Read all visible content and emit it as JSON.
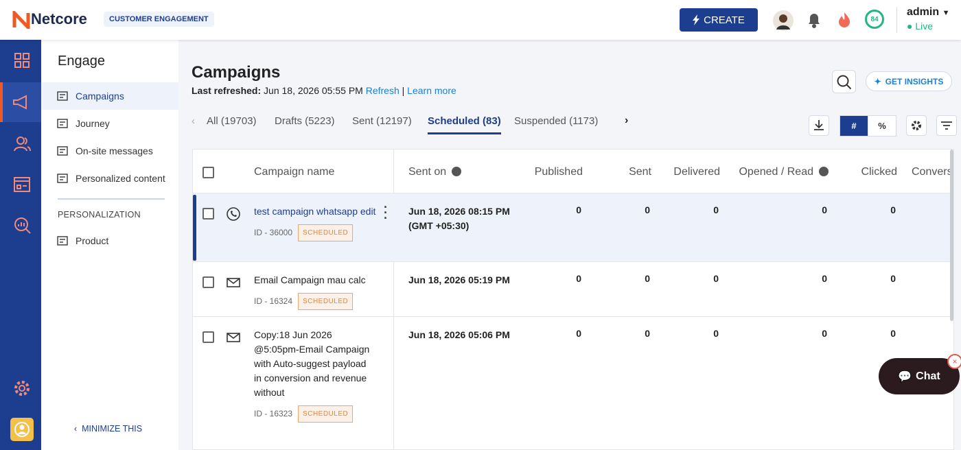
{
  "header": {
    "logo": "Netcore",
    "badge": "CUSTOMER ENGAGEMENT",
    "create": "CREATE",
    "score": "84",
    "user": "admin",
    "status": "Live"
  },
  "sidebar": {
    "title": "Engage",
    "items": [
      "Campaigns",
      "Journey",
      "On-site messages",
      "Personalized content"
    ],
    "section": "PERSONALIZATION",
    "section_items": [
      "Product"
    ],
    "minimize": "MINIMIZE THIS"
  },
  "main": {
    "title": "Campaigns",
    "refreshed_label": "Last refreshed:",
    "refreshed_time": "Jun 18, 2026 05:55 PM",
    "refresh": "Refresh",
    "separator": "|",
    "learn_more": "Learn more",
    "insights": "GET INSIGHTS",
    "tabs": [
      "All (19703)",
      "Drafts (5223)",
      "Sent (12197)",
      "Scheduled (83)",
      "Suspended (1173)"
    ],
    "toggles": [
      "#",
      "%"
    ]
  },
  "table": {
    "columns": [
      "Campaign name",
      "Sent on",
      "Published",
      "Sent",
      "Delivered",
      "Opened / Read",
      "Clicked",
      "Conversions"
    ],
    "rows": [
      {
        "name": "test campaign whatsapp edit",
        "id": "ID - 36000",
        "status": "SCHEDULED",
        "sent_on": "Jun 18, 2026 08:15 PM (GMT +05:30)",
        "values": [
          0,
          0,
          0,
          0,
          0
        ]
      },
      {
        "name": "Email Campaign mau calc",
        "id": "ID - 16324",
        "status": "SCHEDULED",
        "sent_on": "Jun 18, 2026 05:19 PM",
        "values": [
          0,
          0,
          0,
          0,
          0
        ]
      },
      {
        "name": "Copy:18 Jun 2026 @5:05pm-Email Campaign with Auto-suggest payload in conversion and revenue without",
        "id": "ID - 16323",
        "status": "SCHEDULED",
        "sent_on": "Jun 18, 2026 05:06 PM",
        "values": [
          0,
          0,
          0,
          0,
          0
        ]
      }
    ]
  },
  "chat": {
    "label": "Chat"
  }
}
